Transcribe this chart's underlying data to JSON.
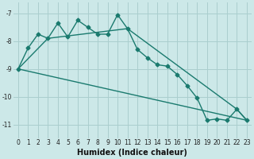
{
  "xlabel": "Humidex (Indice chaleur)",
  "background_color": "#cce8e8",
  "grid_color": "#aacece",
  "line_color": "#1a7a6e",
  "xlim": [
    -0.5,
    23.5
  ],
  "ylim": [
    -11.5,
    -6.6
  ],
  "yticks": [
    -11,
    -10,
    -9,
    -8,
    -7
  ],
  "xticks": [
    0,
    1,
    2,
    3,
    4,
    5,
    6,
    7,
    8,
    9,
    10,
    11,
    12,
    13,
    14,
    15,
    16,
    17,
    18,
    19,
    20,
    21,
    22,
    23
  ],
  "series1_x": [
    0,
    1,
    2,
    3,
    4,
    5,
    6,
    7,
    8,
    9,
    10,
    11,
    12,
    13,
    14,
    15,
    16,
    17,
    18,
    19,
    20,
    21,
    22,
    23
  ],
  "series1_y": [
    -9.0,
    -8.25,
    -7.75,
    -7.9,
    -7.35,
    -7.85,
    -7.25,
    -7.5,
    -7.75,
    -7.75,
    -7.05,
    -7.55,
    -8.3,
    -8.6,
    -8.85,
    -8.9,
    -9.2,
    -9.6,
    -10.05,
    -10.85,
    -10.8,
    -10.85,
    -10.45,
    -10.85
  ],
  "series2_x": [
    0,
    3,
    11,
    22,
    23
  ],
  "series2_y": [
    -9.0,
    -7.9,
    -7.55,
    -10.45,
    -10.85
  ],
  "series3_x": [
    0,
    23
  ],
  "series3_y": [
    -9.0,
    -10.85
  ],
  "marker": "D",
  "markersize": 2.5,
  "linewidth": 1.0,
  "tick_fontsize": 5.5,
  "xlabel_fontsize": 7
}
